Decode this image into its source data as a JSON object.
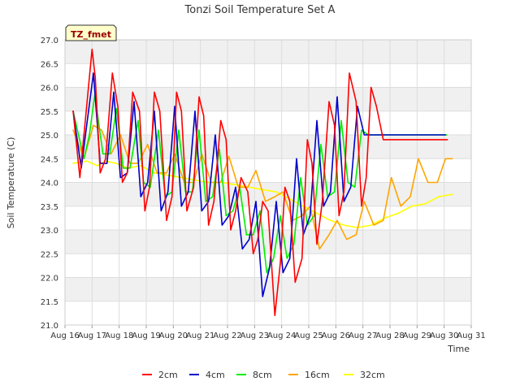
{
  "chart_data": {
    "type": "line",
    "title": "Tonzi Soil Temperature Set A",
    "xlabel": "Time",
    "ylabel": "Soil Temperature (C)",
    "site_label": "TZ_fmet",
    "xlim": [
      16,
      31
    ],
    "ylim": [
      21.0,
      27.0
    ],
    "x_ticks": [
      "Aug 16",
      "Aug 17",
      "Aug 18",
      "Aug 19",
      "Aug 20",
      "Aug 21",
      "Aug 22",
      "Aug 23",
      "Aug 24",
      "Aug 25",
      "Aug 26",
      "Aug 27",
      "Aug 28",
      "Aug 29",
      "Aug 30",
      "Aug 31"
    ],
    "y_ticks": [
      "21.0",
      "21.5",
      "22.0",
      "22.5",
      "23.0",
      "23.5",
      "24.0",
      "24.5",
      "25.0",
      "25.5",
      "26.0",
      "26.5",
      "27.0"
    ],
    "grid": true,
    "legend_position": "bottom",
    "series": [
      {
        "name": "2cm",
        "color": "#ff0000",
        "x": [
          16.3,
          16.55,
          16.75,
          17.0,
          17.12,
          17.3,
          17.5,
          17.75,
          17.95,
          18.12,
          18.3,
          18.5,
          18.75,
          18.95,
          19.12,
          19.3,
          19.5,
          19.75,
          19.95,
          20.12,
          20.3,
          20.5,
          20.75,
          20.95,
          21.12,
          21.3,
          21.5,
          21.75,
          21.95,
          22.12,
          22.3,
          22.5,
          22.75,
          22.95,
          23.12,
          23.3,
          23.5,
          23.75,
          23.95,
          24.12,
          24.3,
          24.5,
          24.75,
          24.95,
          25.12,
          25.3,
          25.5,
          25.75,
          25.95,
          26.12,
          26.3,
          26.5,
          26.75,
          26.95,
          27.12,
          27.3,
          27.5,
          27.75,
          27.95,
          28.12,
          28.3,
          28.5,
          28.75,
          28.95,
          29.12,
          29.3,
          29.5,
          29.75,
          29.95,
          30.12
        ],
        "values": [
          25.5,
          24.1,
          25.3,
          26.8,
          26.2,
          24.2,
          24.5,
          26.3,
          25.6,
          24.0,
          24.2,
          25.9,
          25.5,
          23.4,
          23.9,
          25.9,
          25.5,
          23.2,
          23.7,
          25.9,
          25.5,
          23.4,
          23.9,
          25.8,
          25.4,
          23.1,
          23.6,
          25.3,
          24.9,
          23.0,
          23.4,
          24.1,
          23.8,
          22.5,
          22.8,
          23.6,
          23.4,
          21.2,
          22.3,
          23.9,
          23.6,
          21.9,
          22.4,
          24.9,
          24.4,
          22.7,
          23.6,
          25.7,
          25.2,
          23.3,
          23.8,
          26.3,
          25.7,
          23.5,
          24.1,
          26.0,
          25.6,
          24.9,
          24.9,
          24.9,
          24.9,
          24.9,
          24.9,
          24.9,
          24.9,
          24.9,
          24.9,
          24.9,
          24.9,
          24.9
        ]
      },
      {
        "name": "4cm",
        "color": "#0000cc",
        "x": [
          16.3,
          16.6,
          16.8,
          17.05,
          17.3,
          17.55,
          17.8,
          18.05,
          18.3,
          18.55,
          18.8,
          19.05,
          19.3,
          19.55,
          19.8,
          20.05,
          20.3,
          20.55,
          20.8,
          21.05,
          21.3,
          21.55,
          21.8,
          22.05,
          22.3,
          22.55,
          22.8,
          23.05,
          23.3,
          23.55,
          23.8,
          24.05,
          24.3,
          24.55,
          24.8,
          25.05,
          25.3,
          25.55,
          25.8,
          26.05,
          26.3,
          26.55,
          26.8,
          27.05,
          27.3,
          27.55,
          27.8,
          28.05,
          28.3,
          28.55,
          28.8,
          29.05,
          29.3,
          29.55,
          29.8,
          30.05
        ],
        "values": [
          25.5,
          24.3,
          25.2,
          26.3,
          24.4,
          24.4,
          25.9,
          24.1,
          24.2,
          25.7,
          23.7,
          24.0,
          25.5,
          23.4,
          23.8,
          25.6,
          23.5,
          23.8,
          25.5,
          23.4,
          23.6,
          25.0,
          23.1,
          23.3,
          23.9,
          22.6,
          22.8,
          23.6,
          21.6,
          22.2,
          23.6,
          22.1,
          22.4,
          24.5,
          22.9,
          23.3,
          25.3,
          23.5,
          23.8,
          25.8,
          23.6,
          23.9,
          25.6,
          25.0,
          25.0,
          25.0,
          25.0,
          25.0,
          25.0,
          25.0,
          25.0,
          25.0,
          25.0,
          25.0,
          25.0,
          25.0
        ]
      },
      {
        "name": "8cm",
        "color": "#00ee00",
        "x": [
          16.3,
          16.7,
          16.9,
          17.1,
          17.4,
          17.65,
          17.9,
          18.15,
          18.4,
          18.7,
          18.9,
          19.15,
          19.45,
          19.7,
          19.95,
          20.2,
          20.45,
          20.7,
          20.95,
          21.2,
          21.45,
          21.7,
          21.95,
          22.2,
          22.45,
          22.7,
          22.95,
          23.2,
          23.45,
          23.7,
          23.95,
          24.2,
          24.45,
          24.7,
          24.95,
          25.2,
          25.45,
          25.7,
          25.95,
          26.2,
          26.45,
          26.7,
          26.95,
          27.2,
          27.45,
          27.7,
          27.95,
          28.2,
          28.45,
          28.7,
          28.95,
          29.2,
          29.45,
          29.7,
          29.95,
          30.1
        ],
        "values": [
          25.5,
          24.5,
          25.0,
          25.85,
          24.6,
          24.6,
          25.55,
          24.3,
          24.3,
          25.3,
          24.0,
          23.9,
          25.1,
          23.7,
          23.8,
          25.1,
          23.8,
          23.8,
          25.1,
          23.6,
          23.7,
          24.7,
          23.3,
          23.4,
          23.9,
          22.9,
          22.9,
          23.4,
          22.1,
          22.4,
          23.3,
          22.4,
          22.7,
          24.1,
          23.1,
          23.3,
          24.8,
          23.7,
          23.8,
          25.3,
          24.0,
          23.9,
          25.1,
          25.0,
          25.0,
          25.0,
          25.0,
          25.0,
          25.0,
          25.0,
          25.0,
          25.0,
          25.0,
          25.0,
          25.0,
          25.0
        ]
      },
      {
        "name": "16cm",
        "color": "#ffa500",
        "x": [
          16.3,
          16.7,
          17.05,
          17.35,
          17.7,
          18.05,
          18.4,
          18.7,
          19.05,
          19.4,
          19.75,
          20.05,
          20.4,
          20.75,
          21.05,
          21.4,
          21.75,
          22.05,
          22.4,
          22.75,
          23.05,
          23.4,
          23.75,
          24.05,
          24.4,
          24.75,
          25.05,
          25.4,
          25.75,
          26.05,
          26.4,
          26.75,
          27.05,
          27.4,
          27.75,
          28.05,
          28.4,
          28.75,
          29.05,
          29.4,
          29.75,
          30.05,
          30.3
        ],
        "values": [
          25.1,
          24.5,
          25.2,
          25.1,
          24.6,
          25.0,
          24.4,
          24.4,
          24.8,
          24.2,
          24.2,
          24.6,
          24.0,
          24.0,
          24.6,
          24.0,
          24.0,
          24.55,
          23.9,
          23.9,
          24.25,
          23.6,
          23.7,
          23.8,
          23.2,
          23.3,
          23.5,
          22.6,
          22.9,
          23.2,
          22.8,
          22.9,
          23.6,
          23.1,
          23.2,
          24.1,
          23.5,
          23.7,
          24.5,
          24.0,
          24.0,
          24.5,
          24.5
        ]
      },
      {
        "name": "32cm",
        "color": "#ffff00",
        "x": [
          16.3,
          16.8,
          17.2,
          17.5,
          17.9,
          18.3,
          18.8,
          19.3,
          19.8,
          20.3,
          20.8,
          21.3,
          21.8,
          22.3,
          22.8,
          23.3,
          23.8,
          24.3,
          24.8,
          25.3,
          25.8,
          26.3,
          26.8,
          27.3,
          27.8,
          28.3,
          28.8,
          29.3,
          29.8,
          30.3
        ],
        "values": [
          24.4,
          24.45,
          24.35,
          24.45,
          24.4,
          24.3,
          24.35,
          24.2,
          24.15,
          24.1,
          24.05,
          24.0,
          24.0,
          23.95,
          23.9,
          23.85,
          23.8,
          23.65,
          23.5,
          23.35,
          23.2,
          23.1,
          23.05,
          23.1,
          23.25,
          23.35,
          23.5,
          23.55,
          23.7,
          23.75
        ]
      }
    ]
  }
}
